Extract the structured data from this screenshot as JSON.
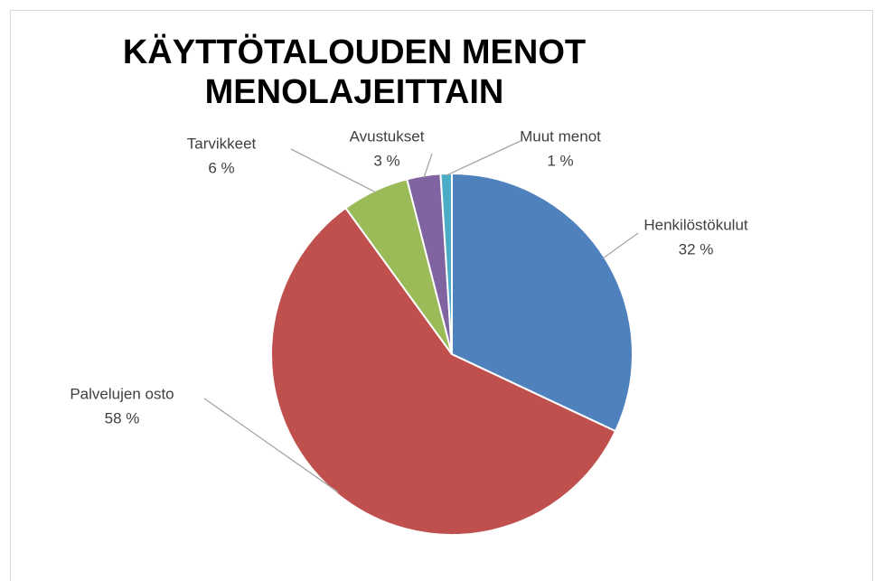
{
  "chart_data": {
    "type": "pie",
    "title": "KÄYTTÖTALOUDEN MENOT MENOLAJEITTAIN",
    "categories": [
      "Henkilöstökulut",
      "Palvelujen osto",
      "Tarvikkeet",
      "Avustukset",
      "Muut menot"
    ],
    "values": [
      32,
      58,
      6,
      3,
      1
    ],
    "value_labels": [
      "32 %",
      "58 %",
      "6 %",
      "3 %",
      "1 %"
    ],
    "colors": [
      "#4f81bd",
      "#c0504d",
      "#9bbb59",
      "#8064a2",
      "#4bacc6"
    ]
  }
}
